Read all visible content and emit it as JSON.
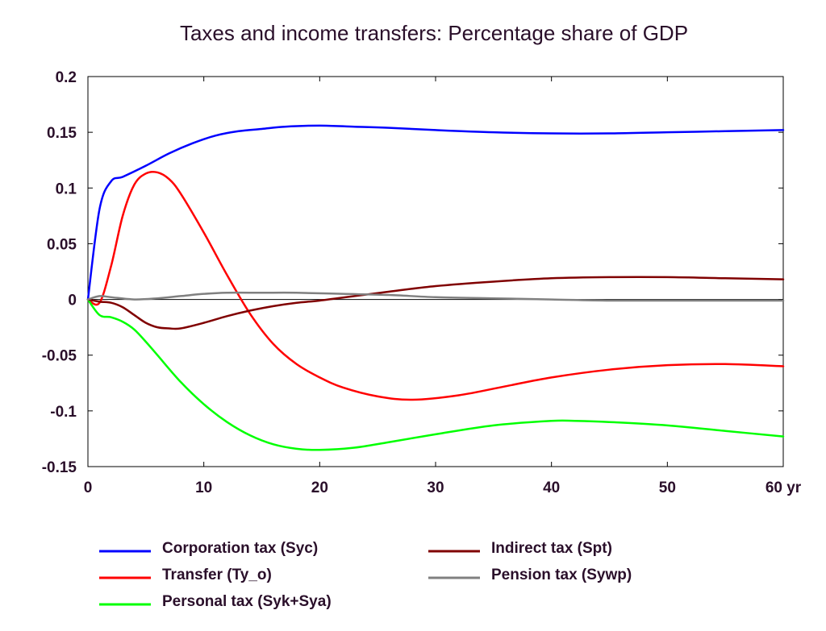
{
  "chart_data": {
    "type": "line",
    "title": "Taxes and income transfers: Percentage share of GDP",
    "xlabel": "",
    "ylabel": "",
    "xlim": [
      0,
      60
    ],
    "ylim": [
      -0.15,
      0.2
    ],
    "x_ticks": [
      {
        "value": 0,
        "label": "0"
      },
      {
        "value": 10,
        "label": "10"
      },
      {
        "value": 20,
        "label": "20"
      },
      {
        "value": 30,
        "label": "30"
      },
      {
        "value": 40,
        "label": "40"
      },
      {
        "value": 50,
        "label": "50"
      },
      {
        "value": 60,
        "label": "60 yr"
      }
    ],
    "y_ticks": [
      {
        "value": 0.2,
        "label": "0.2"
      },
      {
        "value": 0.15,
        "label": "0.15"
      },
      {
        "value": 0.1,
        "label": "0.1"
      },
      {
        "value": 0.05,
        "label": "0.05"
      },
      {
        "value": 0,
        "label": "0"
      },
      {
        "value": -0.05,
        "label": "-0.05"
      },
      {
        "value": -0.1,
        "label": "-0.1"
      },
      {
        "value": -0.15,
        "label": "-0.15"
      }
    ],
    "zero_line": true,
    "grid": false,
    "legend_position": "bottom",
    "series": [
      {
        "name": "Corporation tax (Syc)",
        "color": "#0000ff",
        "x": [
          0,
          1,
          2,
          3,
          5,
          7,
          9,
          11,
          13,
          15,
          17,
          20,
          23,
          26,
          30,
          35,
          40,
          45,
          50,
          55,
          60
        ],
        "values": [
          0,
          0.081,
          0.106,
          0.11,
          0.12,
          0.131,
          0.14,
          0.147,
          0.151,
          0.153,
          0.155,
          0.156,
          0.155,
          0.154,
          0.152,
          0.15,
          0.149,
          0.149,
          0.15,
          0.151,
          0.152
        ]
      },
      {
        "name": "Transfer (Ty_o)",
        "color": "#ff0000",
        "x": [
          0,
          1,
          2,
          3,
          4,
          5,
          6,
          7,
          8,
          10,
          12,
          14,
          16,
          18,
          20,
          22,
          25,
          28,
          32,
          36,
          40,
          45,
          50,
          55,
          60
        ],
        "values": [
          0,
          -0.003,
          0.03,
          0.075,
          0.103,
          0.113,
          0.114,
          0.108,
          0.095,
          0.06,
          0.022,
          -0.013,
          -0.04,
          -0.058,
          -0.07,
          -0.079,
          -0.087,
          -0.09,
          -0.086,
          -0.078,
          -0.07,
          -0.063,
          -0.059,
          -0.058,
          -0.06
        ]
      },
      {
        "name": "Personal tax (Syk+Sya)",
        "color": "#00ff00",
        "x": [
          0,
          1,
          2,
          3,
          4,
          5,
          6,
          8,
          10,
          12,
          14,
          16,
          18,
          20,
          23,
          26,
          30,
          35,
          40,
          42,
          45,
          50,
          55,
          60
        ],
        "values": [
          0,
          -0.014,
          -0.016,
          -0.02,
          -0.027,
          -0.038,
          -0.05,
          -0.074,
          -0.094,
          -0.11,
          -0.122,
          -0.13,
          -0.134,
          -0.135,
          -0.133,
          -0.128,
          -0.121,
          -0.113,
          -0.109,
          -0.109,
          -0.11,
          -0.113,
          -0.118,
          -0.123
        ]
      },
      {
        "name": "Indirect tax (Spt)",
        "color": "#800000",
        "x": [
          0,
          1,
          2,
          3,
          4,
          5,
          6,
          7,
          8,
          10,
          12,
          14,
          16,
          18,
          20,
          23,
          26,
          30,
          35,
          40,
          45,
          50,
          55,
          60
        ],
        "values": [
          0,
          -0.002,
          -0.003,
          -0.007,
          -0.014,
          -0.021,
          -0.025,
          -0.026,
          -0.026,
          -0.021,
          -0.015,
          -0.01,
          -0.006,
          -0.003,
          -0.001,
          0.003,
          0.007,
          0.012,
          0.016,
          0.019,
          0.02,
          0.02,
          0.019,
          0.018
        ]
      },
      {
        "name": "Pension tax (Sywp)",
        "color": "#808080",
        "x": [
          0,
          1,
          2,
          4,
          6,
          8,
          10,
          12,
          15,
          18,
          22,
          26,
          30,
          35,
          40,
          45,
          50,
          55,
          60
        ],
        "values": [
          0,
          0.003,
          0.002,
          0,
          0.001,
          0.003,
          0.005,
          0.006,
          0.006,
          0.006,
          0.005,
          0.004,
          0.002,
          0.001,
          0,
          -0.001,
          -0.001,
          -0.001,
          -0.001
        ]
      }
    ],
    "legend_rows": [
      [
        "Corporation tax (Syc)",
        "Indirect tax (Spt)"
      ],
      [
        "Transfer (Ty_o)",
        "Pension tax (Sywp)"
      ],
      [
        "Personal tax (Syk+Sya)"
      ]
    ]
  }
}
